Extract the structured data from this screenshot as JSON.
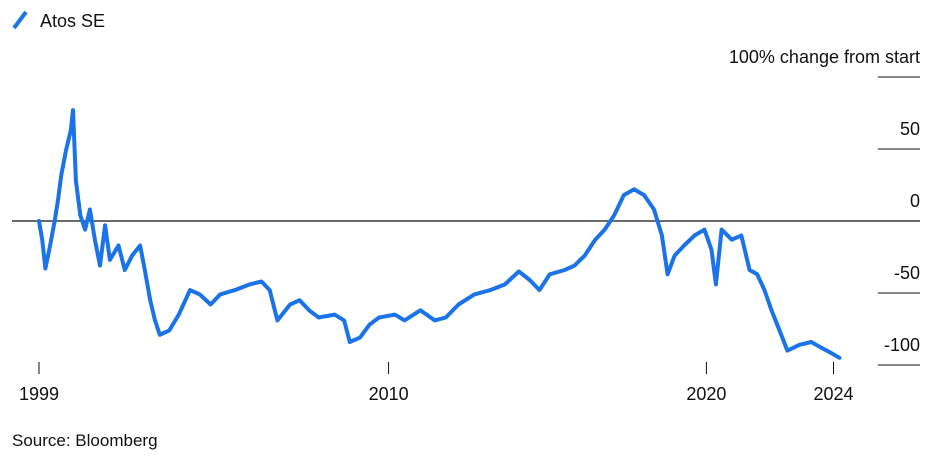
{
  "chart_data": {
    "type": "line",
    "series": [
      {
        "name": "Atos SE",
        "color": "#1a73e8",
        "x": [
          1999.0,
          1999.1,
          1999.2,
          1999.35,
          1999.5,
          1999.6,
          1999.7,
          1999.85,
          2000.0,
          2000.07,
          2000.16,
          2000.3,
          2000.45,
          2000.6,
          2000.76,
          2000.92,
          2001.08,
          2001.23,
          2001.5,
          2001.7,
          2001.93,
          2002.18,
          2002.33,
          2002.5,
          2002.65,
          2002.8,
          2003.1,
          2003.4,
          2003.75,
          2004.06,
          2004.4,
          2004.7,
          2005.16,
          2005.63,
          2006.0,
          2006.26,
          2006.5,
          2006.9,
          2007.2,
          2007.5,
          2007.8,
          2008.3,
          2008.6,
          2008.78,
          2009.1,
          2009.4,
          2009.7,
          2010.2,
          2010.5,
          2011.0,
          2011.45,
          2011.8,
          2012.2,
          2012.7,
          2013.2,
          2013.66,
          2014.1,
          2014.44,
          2014.75,
          2015.07,
          2015.54,
          2015.85,
          2016.17,
          2016.5,
          2016.8,
          2017.1,
          2017.4,
          2017.73,
          2018.04,
          2018.35,
          2018.6,
          2018.78,
          2019.0,
          2019.3,
          2019.63,
          2019.94,
          2020.16,
          2020.3,
          2020.48,
          2020.8,
          2021.1,
          2021.36,
          2021.6,
          2021.83,
          2022.05,
          2022.3,
          2022.55,
          2022.93,
          2023.3,
          2023.62,
          2023.87,
          2024.19
        ],
        "values": [
          0,
          -13,
          -33,
          -17,
          1,
          15,
          32,
          49,
          63,
          77,
          28,
          4,
          -6,
          8,
          -13,
          -31,
          -3,
          -27,
          -17,
          -34,
          -24,
          -17,
          -34,
          -55,
          -69,
          -79,
          -76,
          -65,
          -48,
          -51,
          -58,
          -51,
          -48,
          -44,
          -42,
          -48,
          -69,
          -58,
          -55,
          -62,
          -67,
          -65,
          -69,
          -84,
          -81,
          -72,
          -67,
          -65,
          -69,
          -62,
          -69,
          -67,
          -58,
          -51,
          -48,
          -44,
          -35,
          -41,
          -48,
          -37,
          -34,
          -31,
          -24,
          -13,
          -6,
          4,
          18,
          22,
          18,
          8,
          -10,
          -37,
          -24,
          -17,
          -10,
          -6,
          -20,
          -44,
          -6,
          -13,
          -10,
          -34,
          -37,
          -48,
          -62,
          -76,
          -90,
          -86,
          -84,
          -88,
          -91,
          -95
        ]
      }
    ],
    "xlim": [
      1998.15,
      2025.4
    ],
    "xticks": [
      1999,
      2010,
      2020,
      2024
    ],
    "ylim": [
      -100,
      100
    ],
    "yticks": [
      {
        "value": 100,
        "label": "100% change from start"
      },
      50,
      0,
      -50,
      -100
    ],
    "source": "Source: Bloomberg"
  }
}
